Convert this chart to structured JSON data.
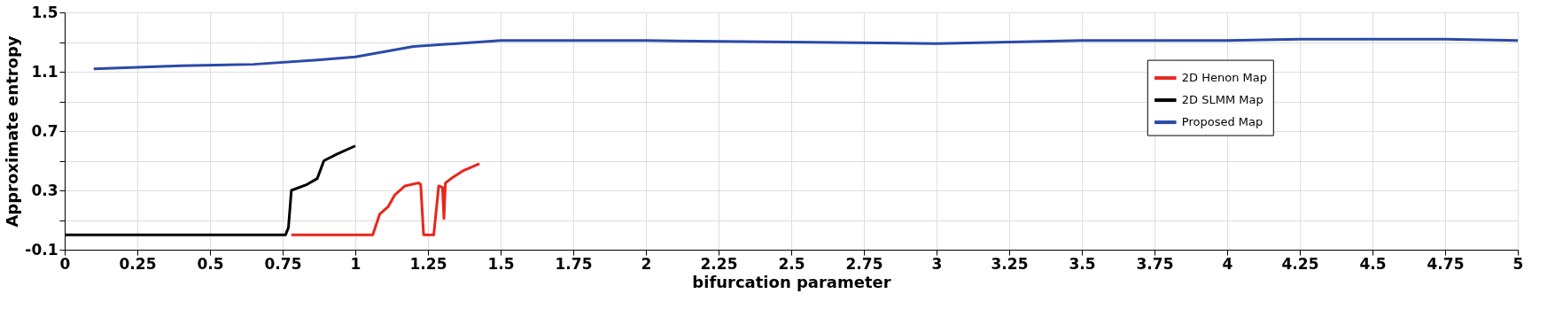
{
  "chart_data": {
    "type": "line",
    "xlabel": "bifurcation parameter",
    "ylabel": "Approximate entropy",
    "xlim": [
      0,
      5
    ],
    "xticks": [
      0,
      0.25,
      0.5,
      0.75,
      1,
      1.25,
      1.5,
      1.75,
      2,
      2.25,
      2.5,
      2.75,
      3,
      3.25,
      3.5,
      3.75,
      4,
      4.25,
      4.5,
      4.75,
      5
    ],
    "ylim": [
      -0.1,
      1.5
    ],
    "yticks": [
      -0.1,
      {
        "value": 0.1,
        "label": null
      },
      0.3,
      {
        "value": 0.5,
        "label": null
      },
      0.7,
      {
        "value": 0.9,
        "label": null
      },
      1.1,
      {
        "value": 1.3,
        "label": null
      },
      1.5
    ],
    "grid": true,
    "legend": "top right",
    "line_style": "solid",
    "series": [
      {
        "name": "2D Henon Map",
        "color": "#e8261c",
        "x": [
          0.78,
          1.06,
          1.084,
          1.113,
          1.136,
          1.171,
          1.217,
          1.225,
          1.235,
          1.27,
          1.287,
          1.3,
          1.305,
          1.31,
          1.33,
          1.369,
          1.427
        ],
        "values": [
          0,
          0,
          0.14,
          0.19,
          0.27,
          0.33,
          0.35,
          0.34,
          0,
          0,
          0.33,
          0.32,
          0.11,
          0.35,
          0.38,
          0.43,
          0.48
        ]
      },
      {
        "name": "2D SLMM Map",
        "color": "#000000",
        "x": [
          0,
          0.76,
          0.77,
          0.78,
          0.834,
          0.869,
          0.892,
          0.938,
          1.0
        ],
        "values": [
          0,
          0,
          0.05,
          0.3,
          0.34,
          0.38,
          0.5,
          0.545,
          0.6
        ]
      },
      {
        "name": "Proposed Map",
        "color": "#2a4aa8",
        "x": [
          0.1,
          0.4,
          0.65,
          0.88,
          1.0,
          1.2,
          1.5,
          2,
          2.5,
          3,
          3.5,
          4,
          4.25,
          4.75,
          5
        ],
        "values": [
          1.12,
          1.14,
          1.15,
          1.18,
          1.2,
          1.27,
          1.31,
          1.31,
          1.3,
          1.29,
          1.31,
          1.31,
          1.32,
          1.32,
          1.31
        ]
      }
    ]
  }
}
